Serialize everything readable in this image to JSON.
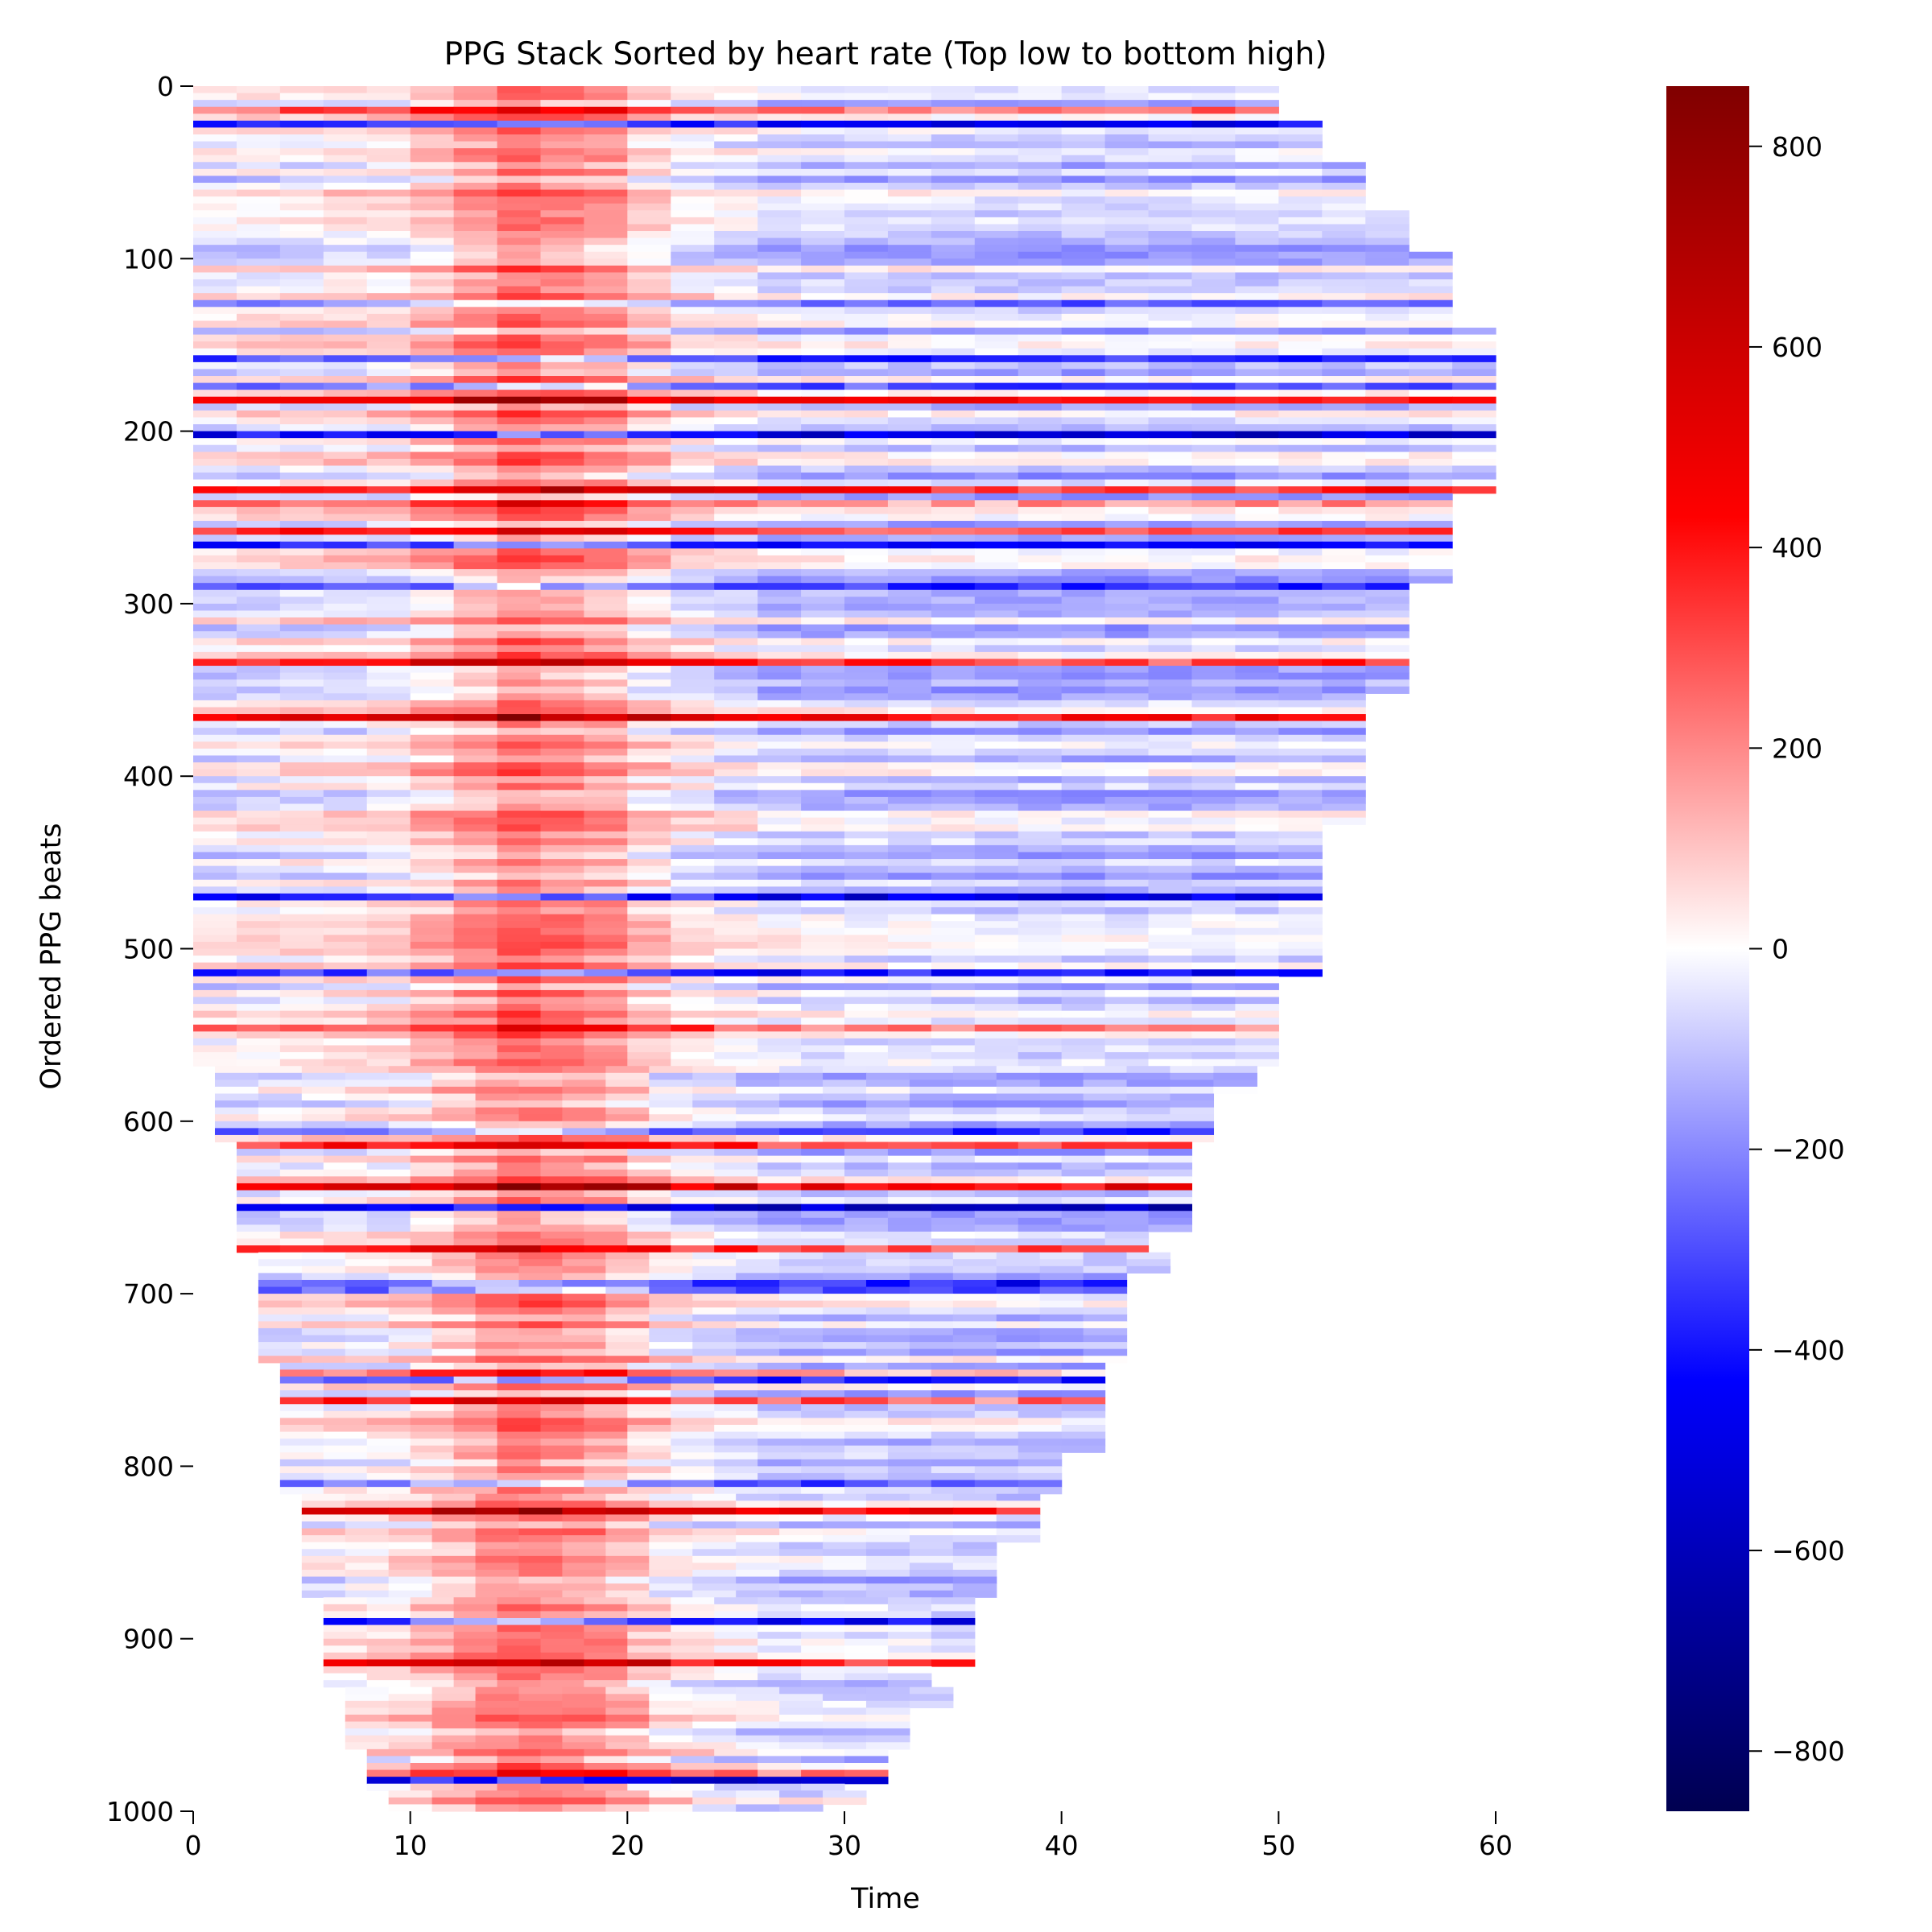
{
  "chart_data": {
    "type": "heatmap",
    "title": "PPG Stack Sorted by heart rate (Top low to bottom high)",
    "xlabel": "Time",
    "ylabel": "Ordered PPG beats",
    "xlim": [
      0,
      60
    ],
    "ylim": [
      0,
      1000
    ],
    "x_ticks": [
      "0",
      "10",
      "20",
      "30",
      "40",
      "50",
      "60"
    ],
    "y_ticks": [
      "0",
      "100",
      "200",
      "300",
      "400",
      "500",
      "600",
      "700",
      "800",
      "900",
      "1000"
    ],
    "colorbar": {
      "colormap": "seismic",
      "range": [
        -860,
        860
      ],
      "ticks": [
        800,
        600,
        400,
        200,
        0,
        -200,
        -400,
        -600,
        -800
      ],
      "tick_labels": [
        "800",
        "600",
        "400",
        "200",
        "0",
        "−200",
        "−400",
        "−600",
        "−800"
      ]
    },
    "shape_profile": [
      {
        "beat": 0,
        "start": 0,
        "end": 49
      },
      {
        "beat": 100,
        "start": 0,
        "end": 57
      },
      {
        "beat": 150,
        "start": 0,
        "end": 59
      },
      {
        "beat": 220,
        "start": 0,
        "end": 59
      },
      {
        "beat": 300,
        "start": 0,
        "end": 56
      },
      {
        "beat": 400,
        "start": 0,
        "end": 53
      },
      {
        "beat": 500,
        "start": 0,
        "end": 51
      },
      {
        "beat": 560,
        "start": 0,
        "end": 49
      },
      {
        "beat": 570,
        "start": 1,
        "end": 48
      },
      {
        "beat": 650,
        "start": 2,
        "end": 45
      },
      {
        "beat": 700,
        "start": 3,
        "end": 43
      },
      {
        "beat": 780,
        "start": 4,
        "end": 41
      },
      {
        "beat": 850,
        "start": 5,
        "end": 37
      },
      {
        "beat": 900,
        "start": 6,
        "end": 35
      },
      {
        "beat": 950,
        "start": 7,
        "end": 33
      },
      {
        "beat": 1000,
        "start": 9,
        "end": 29
      }
    ],
    "mean_profile": [
      {
        "t": 0,
        "value": -20
      },
      {
        "t": 8,
        "value": 30
      },
      {
        "t": 11,
        "value": 120
      },
      {
        "t": 14,
        "value": 230
      },
      {
        "t": 18,
        "value": 160
      },
      {
        "t": 21,
        "value": 20
      },
      {
        "t": 26,
        "value": -60
      },
      {
        "t": 40,
        "value": -90
      },
      {
        "t": 59,
        "value": -60
      }
    ]
  }
}
